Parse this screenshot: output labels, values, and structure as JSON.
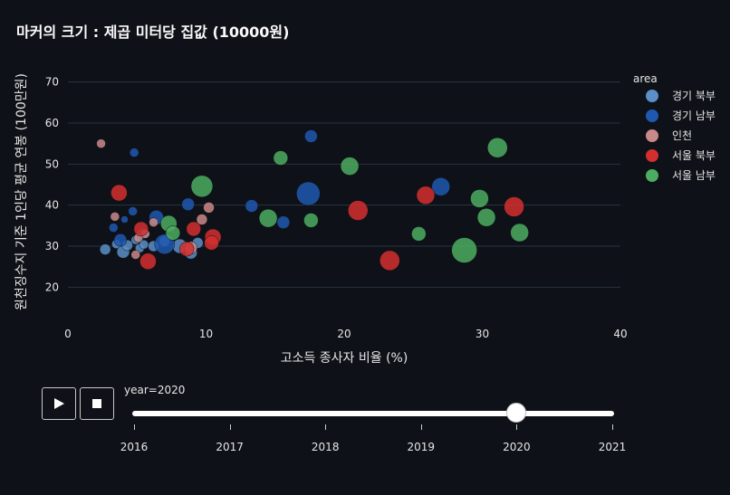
{
  "title": "마커의 크기 : 제곱 미터당 집값 (10000원)",
  "chart_data": {
    "type": "scatter",
    "title": "마커의 크기 : 제곱 미터당 집값 (10000원)",
    "xlabel": "고소득 종사자 비율 (%)",
    "ylabel": "원천징수지 기준 1인당 평균 연봉 (100만원)",
    "xlim": [
      0,
      40
    ],
    "ylim": [
      15,
      75
    ],
    "xticks": [
      0,
      10,
      20,
      30,
      40
    ],
    "yticks": [
      20,
      30,
      40,
      50,
      60,
      70
    ],
    "grid": "horizontal",
    "legend_title": "area",
    "legend_position": "right",
    "size_meaning": "제곱 미터당 집값 (10000원)",
    "series": [
      {
        "name": "경기 북부",
        "color": "#5b8fc7",
        "points": [
          {
            "x": 2.7,
            "y": 29.2,
            "s": 6
          },
          {
            "x": 3.5,
            "y": 30.5,
            "s": 5
          },
          {
            "x": 4.0,
            "y": 28.6,
            "s": 7
          },
          {
            "x": 4.3,
            "y": 30.2,
            "s": 6
          },
          {
            "x": 4.9,
            "y": 31.5,
            "s": 5
          },
          {
            "x": 5.2,
            "y": 29.5,
            "s": 5
          },
          {
            "x": 5.5,
            "y": 30.4,
            "s": 5
          },
          {
            "x": 6.2,
            "y": 30.0,
            "s": 6
          },
          {
            "x": 7.0,
            "y": 31.2,
            "s": 6
          },
          {
            "x": 8.1,
            "y": 30.0,
            "s": 8
          },
          {
            "x": 8.9,
            "y": 28.4,
            "s": 7
          },
          {
            "x": 9.4,
            "y": 30.8,
            "s": 6
          }
        ]
      },
      {
        "name": "경기 남부",
        "color": "#1f58b0",
        "points": [
          {
            "x": 3.3,
            "y": 34.5,
            "s": 5
          },
          {
            "x": 3.8,
            "y": 31.5,
            "s": 7
          },
          {
            "x": 4.1,
            "y": 36.5,
            "s": 4
          },
          {
            "x": 4.7,
            "y": 38.5,
            "s": 5
          },
          {
            "x": 4.8,
            "y": 52.8,
            "s": 5
          },
          {
            "x": 5.4,
            "y": 33.0,
            "s": 6
          },
          {
            "x": 6.4,
            "y": 37.0,
            "s": 8
          },
          {
            "x": 7.0,
            "y": 30.5,
            "s": 11
          },
          {
            "x": 8.7,
            "y": 40.2,
            "s": 7
          },
          {
            "x": 13.3,
            "y": 39.8,
            "s": 7
          },
          {
            "x": 15.6,
            "y": 35.8,
            "s": 7
          },
          {
            "x": 17.4,
            "y": 42.8,
            "s": 13
          },
          {
            "x": 17.6,
            "y": 56.8,
            "s": 7
          },
          {
            "x": 27.0,
            "y": 44.5,
            "s": 10
          }
        ]
      },
      {
        "name": "인천",
        "color": "#c98989",
        "points": [
          {
            "x": 2.4,
            "y": 55.0,
            "s": 5
          },
          {
            "x": 3.4,
            "y": 37.2,
            "s": 5
          },
          {
            "x": 4.9,
            "y": 27.9,
            "s": 5
          },
          {
            "x": 5.1,
            "y": 32.0,
            "s": 5
          },
          {
            "x": 5.6,
            "y": 33.0,
            "s": 5
          },
          {
            "x": 6.2,
            "y": 35.8,
            "s": 5
          },
          {
            "x": 8.9,
            "y": 29.6,
            "s": 7
          },
          {
            "x": 9.7,
            "y": 36.5,
            "s": 6
          },
          {
            "x": 10.2,
            "y": 39.4,
            "s": 6
          }
        ]
      },
      {
        "name": "서울 북부",
        "color": "#d32f2f",
        "points": [
          {
            "x": 3.7,
            "y": 43.0,
            "s": 9
          },
          {
            "x": 5.3,
            "y": 34.2,
            "s": 8
          },
          {
            "x": 5.8,
            "y": 26.3,
            "s": 9
          },
          {
            "x": 8.6,
            "y": 29.3,
            "s": 8
          },
          {
            "x": 9.1,
            "y": 34.2,
            "s": 8
          },
          {
            "x": 10.5,
            "y": 32.2,
            "s": 9
          },
          {
            "x": 10.4,
            "y": 30.8,
            "s": 8
          },
          {
            "x": 21.0,
            "y": 38.7,
            "s": 11
          },
          {
            "x": 23.3,
            "y": 26.5,
            "s": 11
          },
          {
            "x": 25.9,
            "y": 42.4,
            "s": 10
          },
          {
            "x": 32.3,
            "y": 39.6,
            "s": 11
          }
        ]
      },
      {
        "name": "서울 남부",
        "color": "#4cad62",
        "points": [
          {
            "x": 7.3,
            "y": 35.5,
            "s": 9
          },
          {
            "x": 7.6,
            "y": 33.2,
            "s": 8
          },
          {
            "x": 9.7,
            "y": 44.6,
            "s": 12
          },
          {
            "x": 14.5,
            "y": 36.8,
            "s": 10
          },
          {
            "x": 15.4,
            "y": 51.5,
            "s": 8
          },
          {
            "x": 17.6,
            "y": 36.3,
            "s": 8
          },
          {
            "x": 20.4,
            "y": 49.5,
            "s": 10
          },
          {
            "x": 25.4,
            "y": 33.0,
            "s": 8
          },
          {
            "x": 28.7,
            "y": 29.0,
            "s": 14
          },
          {
            "x": 29.8,
            "y": 41.6,
            "s": 10
          },
          {
            "x": 30.3,
            "y": 37.0,
            "s": 10
          },
          {
            "x": 31.1,
            "y": 54.0,
            "s": 11
          },
          {
            "x": 32.7,
            "y": 33.3,
            "s": 10
          }
        ]
      }
    ]
  },
  "controls": {
    "slider_label": "year=2020",
    "current_year": 2020,
    "years": [
      "2016",
      "2017",
      "2018",
      "2019",
      "2020",
      "2021"
    ]
  }
}
